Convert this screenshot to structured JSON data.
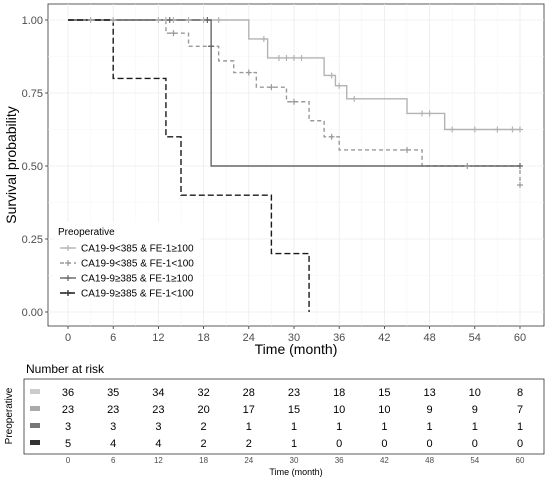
{
  "chart_data": {
    "type": "line",
    "subtype": "kaplan-meier",
    "xlabel": "Time (month)",
    "ylabel": "Survival probability",
    "xlim": [
      0,
      60
    ],
    "ylim": [
      0,
      1
    ],
    "x_ticks": [
      0,
      6,
      12,
      18,
      24,
      30,
      36,
      42,
      48,
      54,
      60
    ],
    "y_ticks": [
      0.0,
      0.25,
      0.5,
      0.75,
      1.0
    ],
    "y_tick_labels": [
      "0.00",
      "0.25",
      "0.50",
      "0.75",
      "1.00"
    ],
    "grid": true,
    "legend": {
      "title": "Preoperative",
      "placement": "bottom-left"
    },
    "series": [
      {
        "name": "CA19-9<385 & FE-1≥100",
        "color": "#b3b3b3",
        "dash": "solid",
        "steps": [
          [
            0,
            1.0
          ],
          [
            24,
            0.935
          ],
          [
            26.5,
            0.87
          ],
          [
            34,
            0.81
          ],
          [
            35.5,
            0.775
          ],
          [
            37,
            0.73
          ],
          [
            45,
            0.68
          ],
          [
            50,
            0.625
          ],
          [
            60,
            0.625
          ]
        ],
        "censors": [
          [
            3,
            1.0
          ],
          [
            6,
            1.0
          ],
          [
            12,
            1.0
          ],
          [
            13,
            1.0
          ],
          [
            14,
            1.0
          ],
          [
            16,
            1.0
          ],
          [
            18,
            1.0
          ],
          [
            20,
            1.0
          ],
          [
            26,
            0.935
          ],
          [
            28,
            0.87
          ],
          [
            29,
            0.87
          ],
          [
            30,
            0.87
          ],
          [
            31,
            0.87
          ],
          [
            35,
            0.81
          ],
          [
            36,
            0.775
          ],
          [
            38,
            0.73
          ],
          [
            47,
            0.68
          ],
          [
            48,
            0.68
          ],
          [
            51,
            0.625
          ],
          [
            54,
            0.625
          ],
          [
            57,
            0.625
          ],
          [
            59,
            0.625
          ],
          [
            60,
            0.625
          ]
        ]
      },
      {
        "name": "CA19-9<385 & FE-1<100",
        "color": "#999999",
        "dash": "4,3",
        "steps": [
          [
            0,
            1.0
          ],
          [
            13,
            0.955
          ],
          [
            16,
            0.91
          ],
          [
            20,
            0.86
          ],
          [
            22,
            0.82
          ],
          [
            25,
            0.77
          ],
          [
            29,
            0.72
          ],
          [
            32,
            0.655
          ],
          [
            34,
            0.6
          ],
          [
            36,
            0.555
          ],
          [
            47,
            0.5
          ],
          [
            60,
            0.435
          ]
        ],
        "censors": [
          [
            14,
            0.955
          ],
          [
            19,
            0.91
          ],
          [
            24,
            0.82
          ],
          [
            27,
            0.77
          ],
          [
            30,
            0.72
          ],
          [
            35,
            0.6
          ],
          [
            45,
            0.555
          ],
          [
            53,
            0.5
          ],
          [
            60,
            0.435
          ]
        ]
      },
      {
        "name": "CA19-9≥385 & FE-1≥100",
        "color": "#666666",
        "dash": "solid",
        "steps": [
          [
            0,
            1.0
          ],
          [
            19,
            0.5
          ],
          [
            60,
            0.5
          ]
        ],
        "censors": [
          [
            13.5,
            1.0
          ],
          [
            18.5,
            1.0
          ],
          [
            19,
            0.91
          ],
          [
            60,
            0.5
          ]
        ]
      },
      {
        "name": "CA19-9≥385 & FE-1<100",
        "color": "#1a1a1a",
        "dash": "6,3",
        "steps": [
          [
            0,
            1.0
          ],
          [
            6,
            0.8
          ],
          [
            13,
            0.6
          ],
          [
            15,
            0.4
          ],
          [
            27,
            0.2
          ],
          [
            32,
            0.0
          ]
        ],
        "censors": []
      }
    ]
  },
  "risk_table": {
    "title": "Number at risk",
    "ylabel": "Preoperative",
    "xlabel": "Time (month)",
    "times": [
      "0",
      "6",
      "12",
      "18",
      "24",
      "30",
      "36",
      "42",
      "48",
      "54",
      "60"
    ],
    "rows": [
      {
        "color": "#cccccc",
        "values": [
          "36",
          "35",
          "34",
          "32",
          "28",
          "23",
          "18",
          "15",
          "13",
          "10",
          "8"
        ]
      },
      {
        "color": "#aaaaaa",
        "values": [
          "23",
          "23",
          "23",
          "20",
          "17",
          "15",
          "10",
          "10",
          "9",
          "9",
          "7"
        ]
      },
      {
        "color": "#777777",
        "values": [
          "3",
          "3",
          "3",
          "2",
          "1",
          "1",
          "1",
          "1",
          "1",
          "1",
          "1"
        ]
      },
      {
        "color": "#333333",
        "values": [
          "5",
          "4",
          "4",
          "2",
          "2",
          "1",
          "0",
          "0",
          "0",
          "0",
          "0"
        ]
      }
    ]
  }
}
